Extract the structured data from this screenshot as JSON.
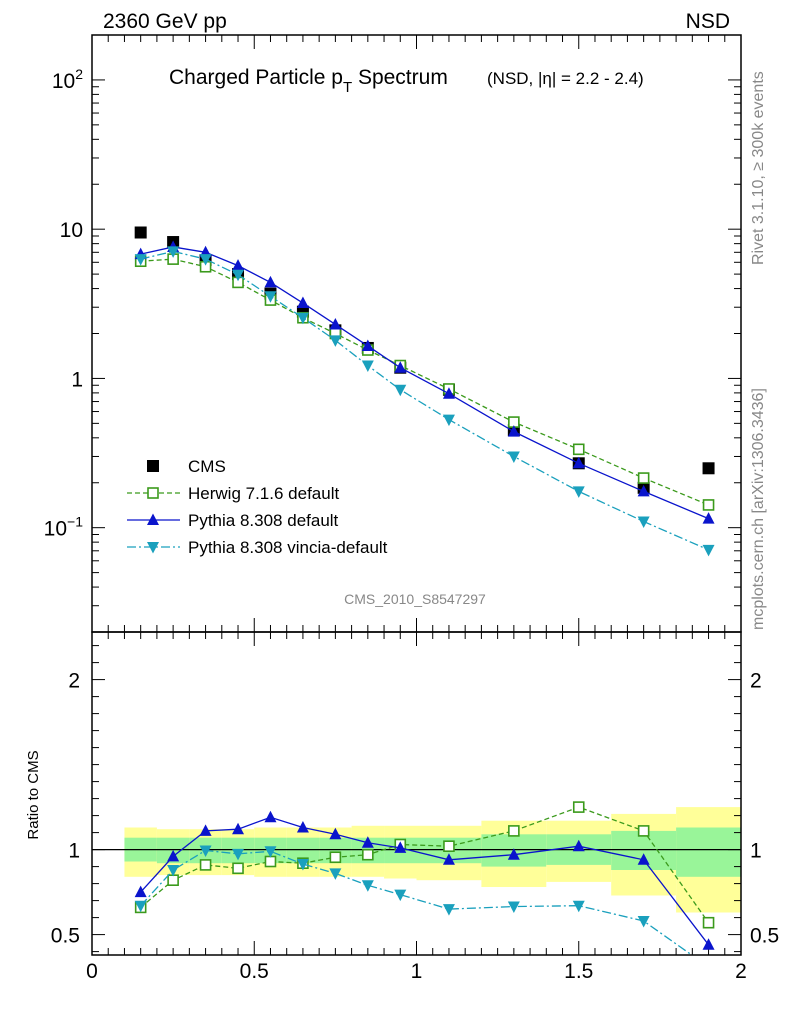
{
  "header": {
    "left": "2360 GeV pp",
    "right": "NSD"
  },
  "side_labels": {
    "top": "Rivet 3.1.10, ≥ 300k events",
    "bottom": "mcplots.cern.ch [arXiv:1306.3436]"
  },
  "colors": {
    "cms": "#000000",
    "herwig": "#3b9a1c",
    "pythia": "#0a14cc",
    "vincia": "#1aa0bd",
    "band_inner": "#99f599",
    "band_outer": "#ffff99"
  },
  "chart_data": [
    {
      "type": "line",
      "title": "Charged Particle p",
      "title_sub": "T",
      "title_tail": " Spectrum",
      "subtitle": "(NSD, |η| = 2.2 - 2.4)",
      "watermark": "CMS_2010_S8547297",
      "xlim": [
        0,
        2
      ],
      "ylim": [
        0.02,
        200
      ],
      "yscale": "log",
      "ytick_labels": [
        {
          "value": 100,
          "base": "10",
          "exp": "2"
        },
        {
          "value": 10,
          "base": "10",
          "exp": ""
        },
        {
          "value": 1,
          "base": "1",
          "exp": ""
        },
        {
          "value": 0.1,
          "base": "10",
          "exp": "−1"
        }
      ],
      "x": [
        0.15,
        0.25,
        0.35,
        0.45,
        0.55,
        0.65,
        0.75,
        0.85,
        0.95,
        1.1,
        1.3,
        1.5,
        1.7,
        1.9
      ],
      "legend_position": "lower-left",
      "series": [
        {
          "name": "CMS",
          "key": "cms",
          "marker": "square-filled",
          "values": [
            9.5,
            8.2,
            6.2,
            5.0,
            3.7,
            2.8,
            2.1,
            1.6,
            1.18,
            0.84,
            0.45,
            0.27,
            0.185,
            0.25
          ]
        },
        {
          "name": "Herwig 7.1.6 default",
          "key": "herwig",
          "marker": "square-open",
          "dash": "5,3",
          "values": [
            6.1,
            6.3,
            5.6,
            4.4,
            3.35,
            2.55,
            2.0,
            1.55,
            1.22,
            0.85,
            0.51,
            0.335,
            0.215,
            0.142
          ]
        },
        {
          "name": "Pythia 8.308 default",
          "key": "pythia",
          "marker": "triangle-up",
          "dash": "",
          "values": [
            6.8,
            7.6,
            7.0,
            5.7,
            4.4,
            3.2,
            2.3,
            1.65,
            1.18,
            0.79,
            0.44,
            0.27,
            0.175,
            0.115
          ]
        },
        {
          "name": "Pythia 8.308 vincia-default",
          "key": "vincia",
          "marker": "triangle-down",
          "dash": "9,3,2,3",
          "values": [
            6.3,
            7.1,
            6.3,
            4.95,
            3.55,
            2.55,
            1.8,
            1.22,
            0.84,
            0.53,
            0.3,
            0.175,
            0.11,
            0.071
          ]
        }
      ]
    },
    {
      "type": "line",
      "ylabel": "Ratio to CMS",
      "xlim": [
        0,
        2
      ],
      "ylim": [
        0.38,
        2.28
      ],
      "ytick_labels": [
        {
          "value": 2,
          "label": "2"
        },
        {
          "value": 1,
          "label": "1"
        },
        {
          "value": 0.5,
          "label": "0.5"
        }
      ],
      "xtick_labels": [
        {
          "value": 0,
          "label": "0"
        },
        {
          "value": 0.5,
          "label": "0.5"
        },
        {
          "value": 1,
          "label": "1"
        },
        {
          "value": 1.5,
          "label": "1.5"
        },
        {
          "value": 2,
          "label": "2"
        }
      ],
      "x": [
        0.15,
        0.25,
        0.35,
        0.45,
        0.55,
        0.65,
        0.75,
        0.85,
        0.95,
        1.1,
        1.3,
        1.5,
        1.7,
        1.9
      ],
      "bands": [
        {
          "x0": 0.1,
          "x1": 0.2,
          "inner": [
            0.93,
            1.07
          ],
          "outer": [
            0.84,
            1.13
          ]
        },
        {
          "x0": 0.2,
          "x1": 0.3,
          "inner": [
            0.92,
            1.07
          ],
          "outer": [
            0.85,
            1.12
          ]
        },
        {
          "x0": 0.3,
          "x1": 0.4,
          "inner": [
            0.92,
            1.07
          ],
          "outer": [
            0.85,
            1.12
          ]
        },
        {
          "x0": 0.4,
          "x1": 0.5,
          "inner": [
            0.92,
            1.07
          ],
          "outer": [
            0.85,
            1.12
          ]
        },
        {
          "x0": 0.5,
          "x1": 0.6,
          "inner": [
            0.92,
            1.07
          ],
          "outer": [
            0.84,
            1.13
          ]
        },
        {
          "x0": 0.6,
          "x1": 0.7,
          "inner": [
            0.92,
            1.07
          ],
          "outer": [
            0.84,
            1.13
          ]
        },
        {
          "x0": 0.7,
          "x1": 0.8,
          "inner": [
            0.92,
            1.07
          ],
          "outer": [
            0.84,
            1.13
          ]
        },
        {
          "x0": 0.8,
          "x1": 0.9,
          "inner": [
            0.92,
            1.07
          ],
          "outer": [
            0.84,
            1.14
          ]
        },
        {
          "x0": 0.9,
          "x1": 1.0,
          "inner": [
            0.92,
            1.07
          ],
          "outer": [
            0.83,
            1.14
          ]
        },
        {
          "x0": 1.0,
          "x1": 1.2,
          "inner": [
            0.92,
            1.07
          ],
          "outer": [
            0.82,
            1.14
          ]
        },
        {
          "x0": 1.2,
          "x1": 1.4,
          "inner": [
            0.9,
            1.09
          ],
          "outer": [
            0.78,
            1.17
          ]
        },
        {
          "x0": 1.4,
          "x1": 1.6,
          "inner": [
            0.91,
            1.09
          ],
          "outer": [
            0.81,
            1.17
          ]
        },
        {
          "x0": 1.6,
          "x1": 1.8,
          "inner": [
            0.88,
            1.11
          ],
          "outer": [
            0.73,
            1.21
          ]
        },
        {
          "x0": 1.8,
          "x1": 2.0,
          "inner": [
            0.84,
            1.13
          ],
          "outer": [
            0.63,
            1.25
          ]
        }
      ],
      "series": [
        {
          "name": "Herwig 7.1.6 default",
          "key": "herwig",
          "marker": "square-open",
          "dash": "5,3",
          "values": [
            0.66,
            0.82,
            0.91,
            0.89,
            0.93,
            0.92,
            0.955,
            0.97,
            1.03,
            1.02,
            1.11,
            1.25,
            1.11,
            0.57
          ]
        },
        {
          "name": "Pythia 8.308 default",
          "key": "pythia",
          "marker": "triangle-up",
          "dash": "",
          "values": [
            0.75,
            0.96,
            1.11,
            1.12,
            1.19,
            1.13,
            1.09,
            1.04,
            1.01,
            0.94,
            0.97,
            1.02,
            0.94,
            0.44
          ]
        },
        {
          "name": "Pythia 8.308 vincia-default",
          "key": "vincia",
          "marker": "triangle-down",
          "dash": "9,3,2,3",
          "values": [
            0.67,
            0.88,
            0.995,
            0.975,
            0.99,
            0.915,
            0.86,
            0.79,
            0.735,
            0.65,
            0.665,
            0.67,
            0.58,
            0.31
          ]
        }
      ]
    }
  ]
}
